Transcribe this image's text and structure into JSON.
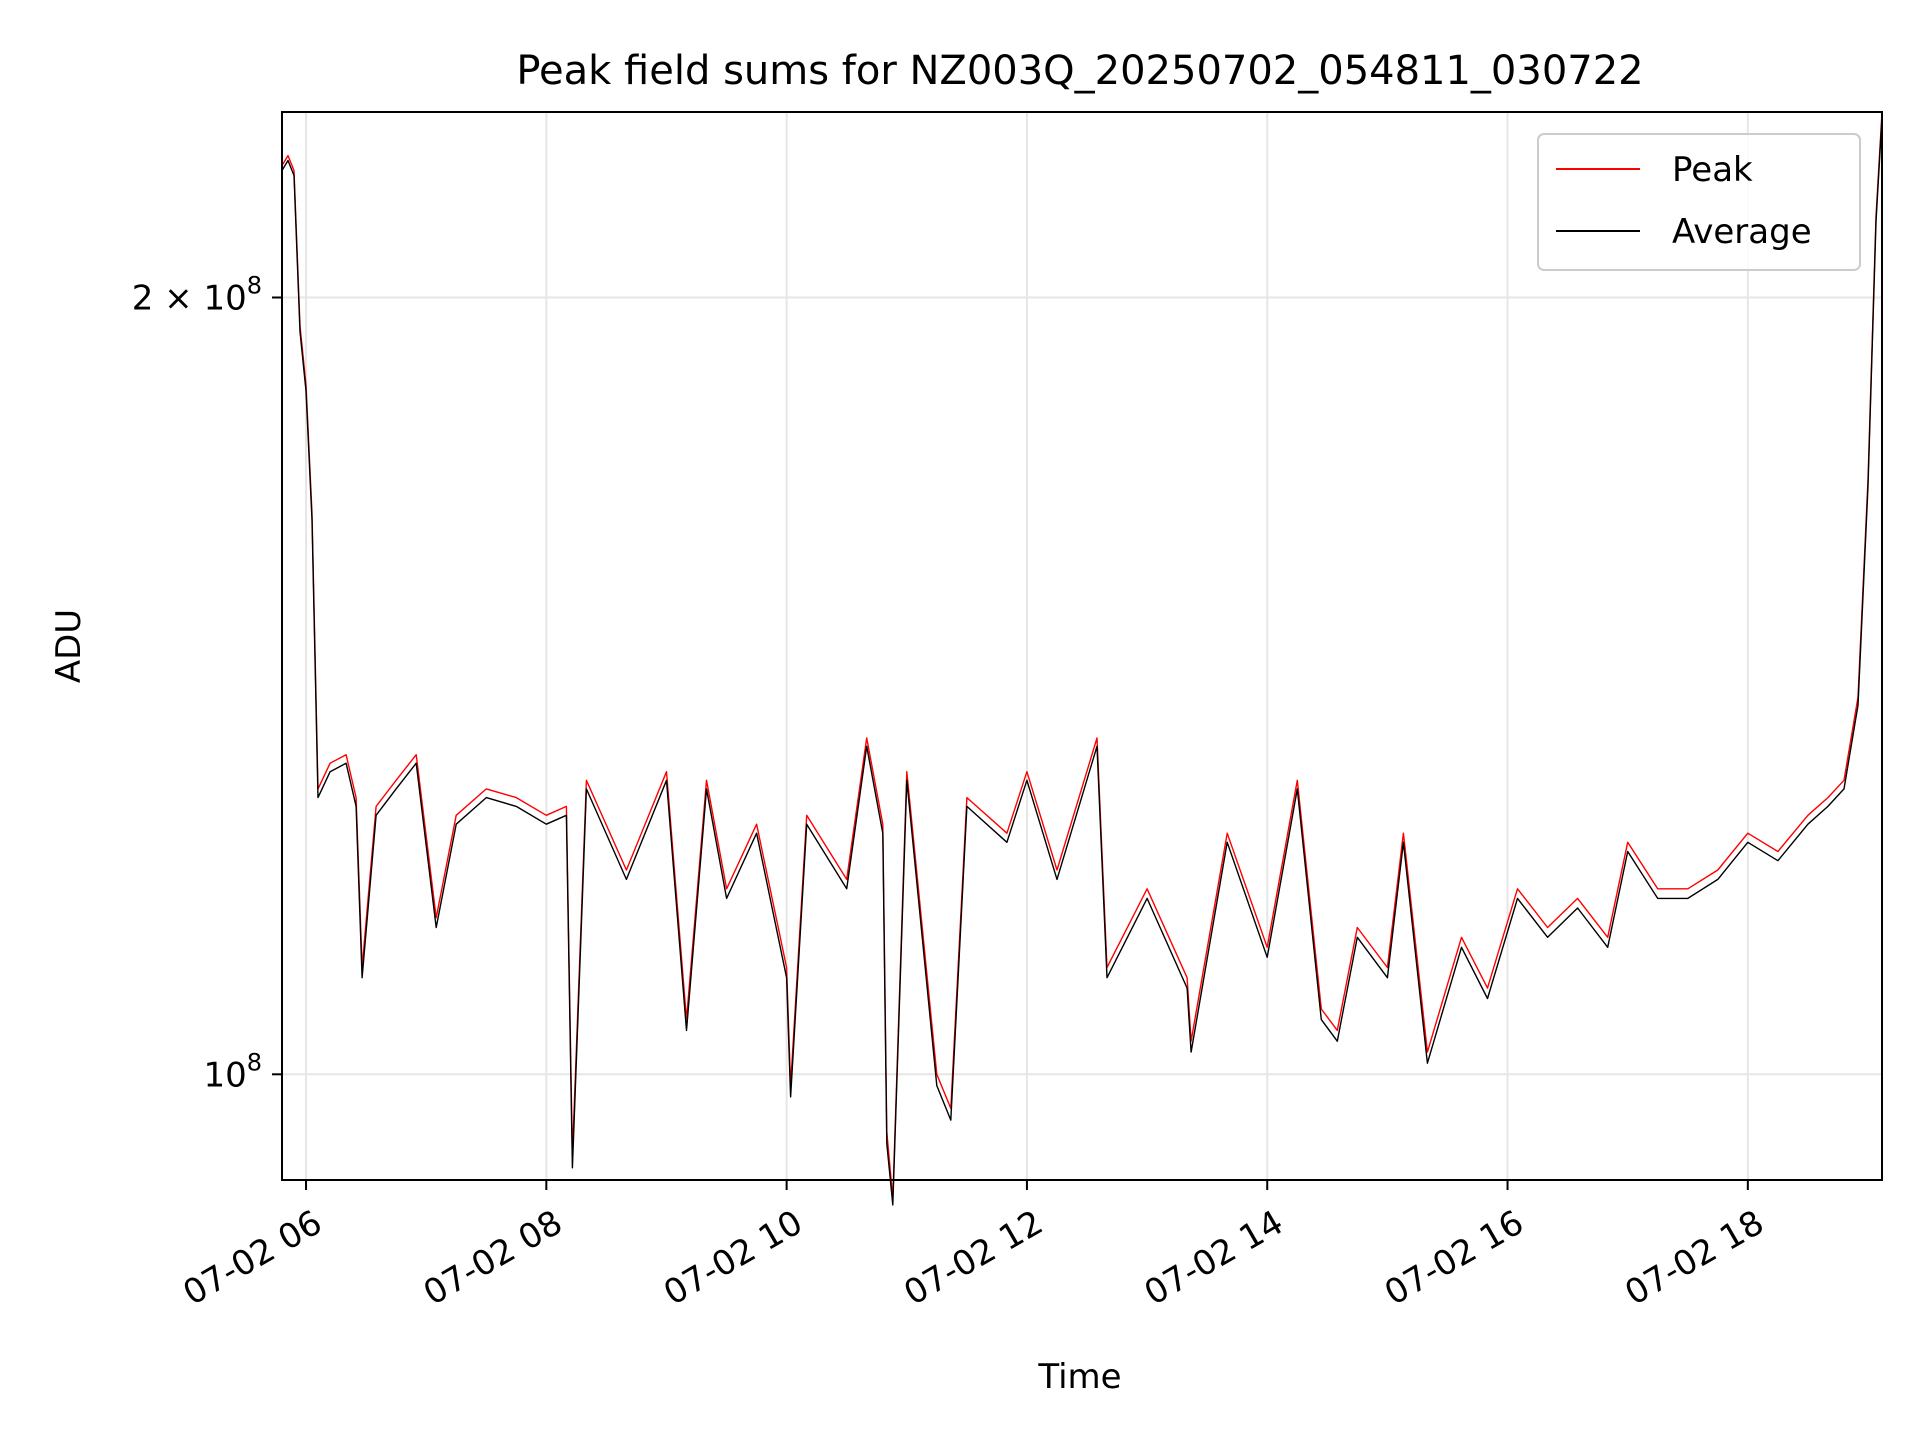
{
  "chart_data": {
    "type": "line",
    "title": "Peak field sums for NZ003Q_20250702_054811_030722",
    "xlabel": "Time",
    "ylabel": "ADU",
    "y_scale": "log",
    "ylim": [
      91000000,
      236000000
    ],
    "xlim": [
      "2025-07-02 05:48",
      "2025-07-02 19:07"
    ],
    "grid": true,
    "legend_position": "upper right",
    "x_ticks": [
      {
        "value": "2025-07-02 06:00",
        "label": "07-02 06"
      },
      {
        "value": "2025-07-02 08:00",
        "label": "07-02 08"
      },
      {
        "value": "2025-07-02 10:00",
        "label": "07-02 10"
      },
      {
        "value": "2025-07-02 12:00",
        "label": "07-02 12"
      },
      {
        "value": "2025-07-02 14:00",
        "label": "07-02 14"
      },
      {
        "value": "2025-07-02 16:00",
        "label": "07-02 16"
      },
      {
        "value": "2025-07-02 18:00",
        "label": "07-02 18"
      }
    ],
    "y_ticks": [
      {
        "value": 100000000,
        "base": "10",
        "exp": "8",
        "coef": ""
      },
      {
        "value": 200000000,
        "base": "10",
        "exp": "8",
        "coef": "2"
      }
    ],
    "series": [
      {
        "name": "Peak",
        "color": "#ff0000",
        "x": [
          "2025-07-02 05:48",
          "2025-07-02 05:51",
          "2025-07-02 05:54",
          "2025-07-02 05:57",
          "2025-07-02 06:00",
          "2025-07-02 06:03",
          "2025-07-02 06:06",
          "2025-07-02 06:12",
          "2025-07-02 06:20",
          "2025-07-02 06:25",
          "2025-07-02 06:28",
          "2025-07-02 06:35",
          "2025-07-02 06:45",
          "2025-07-02 06:55",
          "2025-07-02 07:05",
          "2025-07-02 07:15",
          "2025-07-02 07:30",
          "2025-07-02 07:45",
          "2025-07-02 08:00",
          "2025-07-02 08:10",
          "2025-07-02 08:13",
          "2025-07-02 08:20",
          "2025-07-02 08:40",
          "2025-07-02 09:00",
          "2025-07-02 09:10",
          "2025-07-02 09:20",
          "2025-07-02 09:30",
          "2025-07-02 09:45",
          "2025-07-02 10:00",
          "2025-07-02 10:02",
          "2025-07-02 10:10",
          "2025-07-02 10:30",
          "2025-07-02 10:40",
          "2025-07-02 10:48",
          "2025-07-02 10:50",
          "2025-07-02 10:53",
          "2025-07-02 11:00",
          "2025-07-02 11:15",
          "2025-07-02 11:22",
          "2025-07-02 11:30",
          "2025-07-02 11:50",
          "2025-07-02 12:00",
          "2025-07-02 12:15",
          "2025-07-02 12:35",
          "2025-07-02 12:40",
          "2025-07-02 13:00",
          "2025-07-02 13:20",
          "2025-07-02 13:22",
          "2025-07-02 13:40",
          "2025-07-02 14:00",
          "2025-07-02 14:15",
          "2025-07-02 14:27",
          "2025-07-02 14:35",
          "2025-07-02 14:45",
          "2025-07-02 15:00",
          "2025-07-02 15:08",
          "2025-07-02 15:20",
          "2025-07-02 15:37",
          "2025-07-02 15:50",
          "2025-07-02 16:05",
          "2025-07-02 16:20",
          "2025-07-02 16:35",
          "2025-07-02 16:50",
          "2025-07-02 17:00",
          "2025-07-02 17:15",
          "2025-07-02 17:30",
          "2025-07-02 17:45",
          "2025-07-02 18:00",
          "2025-07-02 18:15",
          "2025-07-02 18:30",
          "2025-07-02 18:40",
          "2025-07-02 18:48",
          "2025-07-02 18:55",
          "2025-07-02 19:00",
          "2025-07-02 19:04",
          "2025-07-02 19:07"
        ],
        "y": [
          225000000,
          227000000,
          224000000,
          195000000,
          185000000,
          165000000,
          129000000,
          132000000,
          133000000,
          128000000,
          110000000,
          127000000,
          130000000,
          133000000,
          115000000,
          126000000,
          129000000,
          128000000,
          126000000,
          127000000,
          93000000,
          130000000,
          120000000,
          131000000,
          105000000,
          130000000,
          118000000,
          125000000,
          110000000,
          99000000,
          126000000,
          119000000,
          135000000,
          125000000,
          95000000,
          89500000,
          131000000,
          100000000,
          97000000,
          128000000,
          124000000,
          131000000,
          120000000,
          135000000,
          110000000,
          118000000,
          109000000,
          103000000,
          124000000,
          112000000,
          130000000,
          106000000,
          104000000,
          114000000,
          110000000,
          124000000,
          102000000,
          113000000,
          108000000,
          118000000,
          114000000,
          117000000,
          113000000,
          123000000,
          118000000,
          118000000,
          120000000,
          124000000,
          122000000,
          126000000,
          128000000,
          130000000,
          140000000,
          170000000,
          215000000,
          236000000
        ]
      },
      {
        "name": "Average",
        "color": "#000000",
        "x": [
          "2025-07-02 05:48",
          "2025-07-02 05:51",
          "2025-07-02 05:54",
          "2025-07-02 05:57",
          "2025-07-02 06:00",
          "2025-07-02 06:03",
          "2025-07-02 06:06",
          "2025-07-02 06:12",
          "2025-07-02 06:20",
          "2025-07-02 06:25",
          "2025-07-02 06:28",
          "2025-07-02 06:35",
          "2025-07-02 06:45",
          "2025-07-02 06:55",
          "2025-07-02 07:05",
          "2025-07-02 07:15",
          "2025-07-02 07:30",
          "2025-07-02 07:45",
          "2025-07-02 08:00",
          "2025-07-02 08:10",
          "2025-07-02 08:13",
          "2025-07-02 08:20",
          "2025-07-02 08:40",
          "2025-07-02 09:00",
          "2025-07-02 09:10",
          "2025-07-02 09:20",
          "2025-07-02 09:30",
          "2025-07-02 09:45",
          "2025-07-02 10:00",
          "2025-07-02 10:02",
          "2025-07-02 10:10",
          "2025-07-02 10:30",
          "2025-07-02 10:40",
          "2025-07-02 10:48",
          "2025-07-02 10:50",
          "2025-07-02 10:53",
          "2025-07-02 11:00",
          "2025-07-02 11:15",
          "2025-07-02 11:22",
          "2025-07-02 11:30",
          "2025-07-02 11:50",
          "2025-07-02 12:00",
          "2025-07-02 12:15",
          "2025-07-02 12:35",
          "2025-07-02 12:40",
          "2025-07-02 13:00",
          "2025-07-02 13:20",
          "2025-07-02 13:22",
          "2025-07-02 13:40",
          "2025-07-02 14:00",
          "2025-07-02 14:15",
          "2025-07-02 14:27",
          "2025-07-02 14:35",
          "2025-07-02 14:45",
          "2025-07-02 15:00",
          "2025-07-02 15:08",
          "2025-07-02 15:20",
          "2025-07-02 15:37",
          "2025-07-02 15:50",
          "2025-07-02 16:05",
          "2025-07-02 16:20",
          "2025-07-02 16:35",
          "2025-07-02 16:50",
          "2025-07-02 17:00",
          "2025-07-02 17:15",
          "2025-07-02 17:30",
          "2025-07-02 17:45",
          "2025-07-02 18:00",
          "2025-07-02 18:15",
          "2025-07-02 18:30",
          "2025-07-02 18:40",
          "2025-07-02 18:48",
          "2025-07-02 18:55",
          "2025-07-02 19:00",
          "2025-07-02 19:04",
          "2025-07-02 19:07"
        ],
        "y": [
          224000000,
          226000000,
          223000000,
          194000000,
          184000000,
          164000000,
          128000000,
          131000000,
          132000000,
          127000000,
          109000000,
          126000000,
          129000000,
          132000000,
          114000000,
          125000000,
          128000000,
          127000000,
          125000000,
          126000000,
          92000000,
          129000000,
          119000000,
          130000000,
          104000000,
          129000000,
          117000000,
          124000000,
          109000000,
          98000000,
          125000000,
          118000000,
          134000000,
          124000000,
          94000000,
          89000000,
          130000000,
          99000000,
          96000000,
          127000000,
          123000000,
          130000000,
          119000000,
          134000000,
          109000000,
          117000000,
          108000000,
          102000000,
          123000000,
          111000000,
          129000000,
          105000000,
          103000000,
          113000000,
          109000000,
          123000000,
          101000000,
          112000000,
          107000000,
          117000000,
          113000000,
          116000000,
          112000000,
          122000000,
          117000000,
          117000000,
          119000000,
          123000000,
          121000000,
          125000000,
          127000000,
          129000000,
          139000000,
          169000000,
          214000000,
          235000000
        ]
      }
    ]
  }
}
